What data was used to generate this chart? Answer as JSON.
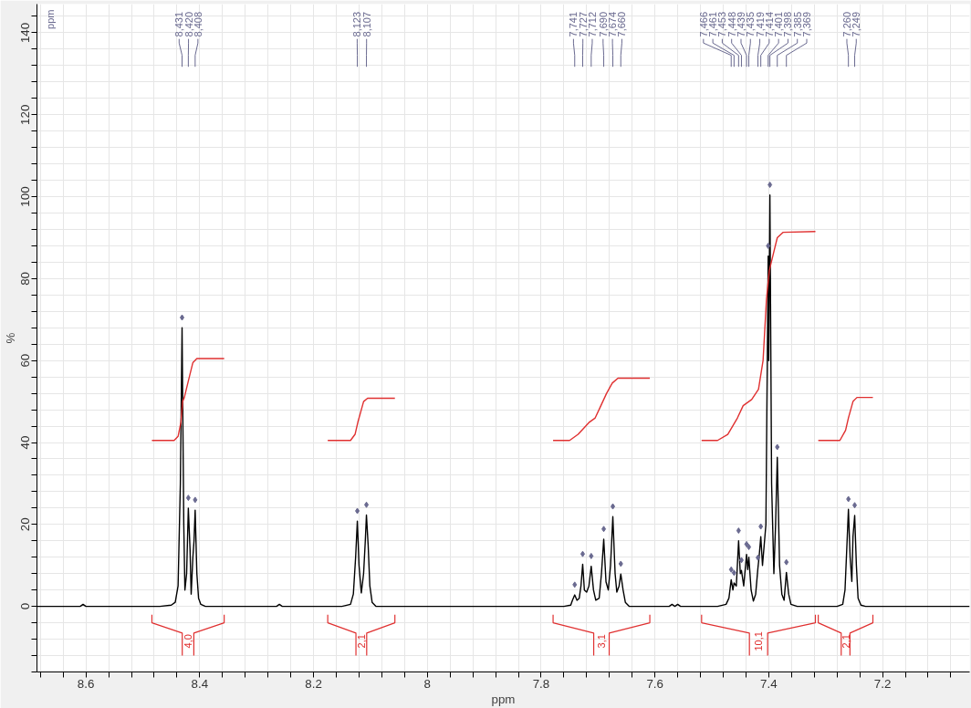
{
  "chart_data": {
    "type": "line",
    "xlabel": "ppm",
    "ylabel": "%",
    "xlim": [
      8.686,
      7.047
    ],
    "ylim": [
      -16,
      147
    ],
    "xticks": [
      {
        "value": 8.68,
        "label": null
      },
      {
        "value": 8.64,
        "label": null
      },
      8.6,
      {
        "value": 8.56,
        "label": null
      },
      {
        "value": 8.52,
        "label": null
      },
      {
        "value": 8.48,
        "label": null
      },
      {
        "value": 8.44,
        "label": null
      },
      8.4,
      {
        "value": 8.36,
        "label": null
      },
      {
        "value": 8.32,
        "label": null
      },
      {
        "value": 8.28,
        "label": null
      },
      {
        "value": 8.24,
        "label": null
      },
      8.2,
      {
        "value": 8.16,
        "label": null
      },
      {
        "value": 8.12,
        "label": null
      },
      {
        "value": 8.08,
        "label": null
      },
      {
        "value": 8.04,
        "label": null
      },
      8,
      {
        "value": 7.96,
        "label": null
      },
      {
        "value": 7.92,
        "label": null
      },
      {
        "value": 7.88,
        "label": null
      },
      {
        "value": 7.84,
        "label": null
      },
      7.8,
      {
        "value": 7.76,
        "label": null
      },
      {
        "value": 7.72,
        "label": null
      },
      {
        "value": 7.68,
        "label": null
      },
      {
        "value": 7.64,
        "label": null
      },
      7.6,
      {
        "value": 7.56,
        "label": null
      },
      {
        "value": 7.52,
        "label": null
      },
      {
        "value": 7.48,
        "label": null
      },
      {
        "value": 7.44,
        "label": null
      },
      7.4,
      {
        "value": 7.36,
        "label": null
      },
      {
        "value": 7.32,
        "label": null
      },
      {
        "value": 7.28,
        "label": null
      },
      {
        "value": 7.24,
        "label": null
      },
      7.2,
      {
        "value": 7.16,
        "label": null
      },
      {
        "value": 7.12,
        "label": null
      },
      {
        "value": 7.08,
        "label": null
      }
    ],
    "yticks": [
      {
        "value": -16,
        "label": null
      },
      {
        "value": -12,
        "label": null
      },
      {
        "value": -8,
        "label": null
      },
      {
        "value": -4,
        "label": null
      },
      0,
      {
        "value": 4,
        "label": null
      },
      {
        "value": 8,
        "label": null
      },
      {
        "value": 12,
        "label": null
      },
      {
        "value": 16,
        "label": null
      },
      20,
      {
        "value": 24,
        "label": null
      },
      {
        "value": 28,
        "label": null
      },
      {
        "value": 32,
        "label": null
      },
      {
        "value": 36,
        "label": null
      },
      40,
      {
        "value": 44,
        "label": null
      },
      {
        "value": 48,
        "label": null
      },
      {
        "value": 52,
        "label": null
      },
      {
        "value": 56,
        "label": null
      },
      60,
      {
        "value": 64,
        "label": null
      },
      {
        "value": 68,
        "label": null
      },
      {
        "value": 72,
        "label": null
      },
      {
        "value": 76,
        "label": null
      },
      80,
      {
        "value": 84,
        "label": null
      },
      {
        "value": 88,
        "label": null
      },
      {
        "value": 92,
        "label": null
      },
      {
        "value": 96,
        "label": null
      },
      100,
      {
        "value": 104,
        "label": null
      },
      {
        "value": 108,
        "label": null
      },
      {
        "value": 112,
        "label": null
      },
      {
        "value": 116,
        "label": null
      },
      120,
      {
        "value": 124,
        "label": null
      },
      {
        "value": 128,
        "label": null
      },
      {
        "value": 132,
        "label": null
      },
      {
        "value": 136,
        "label": null
      },
      140,
      {
        "value": 144,
        "label": null
      }
    ],
    "grid": true,
    "series": [
      {
        "color": "#000000",
        "x": [
          8.686,
          8.61,
          8.605,
          8.6,
          8.47,
          8.45,
          8.443,
          8.438,
          8.434,
          8.431,
          8.428,
          8.426,
          8.423,
          8.42,
          8.417,
          8.415,
          8.412,
          8.41,
          8.408,
          8.405,
          8.402,
          8.398,
          8.39,
          8.265,
          8.26,
          8.255,
          8.15,
          8.135,
          8.13,
          8.126,
          8.123,
          8.12,
          8.116,
          8.112,
          8.109,
          8.107,
          8.104,
          8.101,
          8.097,
          8.09,
          7.76,
          7.748,
          7.745,
          7.741,
          7.737,
          7.733,
          7.73,
          7.727,
          7.724,
          7.72,
          7.716,
          7.712,
          7.708,
          7.704,
          7.698,
          7.694,
          7.69,
          7.686,
          7.682,
          7.678,
          7.674,
          7.67,
          7.667,
          7.663,
          7.66,
          7.656,
          7.652,
          7.645,
          7.575,
          7.57,
          7.565,
          7.56,
          7.555,
          7.55,
          7.49,
          7.475,
          7.47,
          7.466,
          7.463,
          7.461,
          7.457,
          7.453,
          7.45,
          7.448,
          7.444,
          7.439,
          7.437,
          7.435,
          7.431,
          7.427,
          7.423,
          7.419,
          7.417,
          7.414,
          7.411,
          7.405,
          7.401,
          7.4,
          7.398,
          7.395,
          7.391,
          7.388,
          7.385,
          7.381,
          7.377,
          7.373,
          7.369,
          7.365,
          7.361,
          7.35,
          7.28,
          7.27,
          7.266,
          7.262,
          7.26,
          7.257,
          7.254,
          7.252,
          7.249,
          7.246,
          7.243,
          7.238,
          7.23,
          7.047
        ],
        "values": [
          0,
          0,
          0.5,
          0,
          0,
          0.3,
          1,
          5,
          30,
          68,
          20,
          4,
          8,
          24,
          14,
          3,
          12,
          16,
          23.5,
          8,
          2,
          0.5,
          0,
          0,
          0.5,
          0,
          0,
          0.5,
          3,
          12,
          20.8,
          10,
          3.3,
          8,
          16,
          22.3,
          15,
          5,
          1,
          0,
          0,
          0.3,
          1.5,
          2.8,
          1.5,
          2,
          5,
          10.3,
          4,
          3.5,
          5,
          9.8,
          4,
          1.5,
          2,
          8,
          16.4,
          6,
          4,
          10,
          21.9,
          8,
          3.5,
          5,
          7.9,
          4,
          1,
          0,
          0,
          0.5,
          0,
          0.5,
          0,
          0,
          0,
          0.5,
          2,
          6.5,
          4,
          5.7,
          5,
          16,
          8,
          8.8,
          5,
          12.7,
          9,
          12,
          4,
          1.3,
          3,
          9.4,
          12,
          17,
          10,
          20,
          85.5,
          60,
          100.4,
          30,
          8,
          20,
          36.4,
          10,
          3,
          1.5,
          8.3,
          3,
          0.5,
          0,
          0,
          0.5,
          4,
          17,
          23.7,
          12,
          6.1,
          17,
          22.2,
          10,
          2,
          0.3,
          0,
          0
        ]
      },
      {
        "type": "scatter",
        "marker": "diamond",
        "color": "#6a6a90",
        "x": [
          8.431,
          8.42,
          8.408,
          8.123,
          8.107,
          7.741,
          7.727,
          7.712,
          7.69,
          7.674,
          7.66,
          7.466,
          7.461,
          7.453,
          7.448,
          7.439,
          7.435,
          7.419,
          7.414,
          7.401,
          7.398,
          7.385,
          7.369,
          7.26,
          7.249
        ],
        "values": [
          70.5,
          26.5,
          26,
          23.3,
          24.8,
          5.3,
          12.8,
          12.3,
          18.9,
          24.4,
          10.4,
          9,
          8.2,
          18.5,
          11.3,
          15.2,
          14.5,
          11.9,
          19.5,
          88,
          102.9,
          38.9,
          10.8,
          26.2,
          24.7
        ]
      },
      {
        "type": "line",
        "color": "#e03030",
        "x": [
          8.484,
          8.445,
          8.438,
          8.433,
          8.43,
          8.427,
          8.42,
          8.412,
          8.405,
          8.357
        ],
        "values": [
          40.5,
          40.5,
          41.5,
          45,
          50,
          51,
          55,
          59.5,
          60.5,
          60.5
        ]
      },
      {
        "type": "line",
        "color": "#e03030",
        "x": [
          8.175,
          8.135,
          8.127,
          8.122,
          8.118,
          8.112,
          8.105,
          8.057
        ],
        "values": [
          40.5,
          40.5,
          42,
          45,
          47,
          50,
          50.8,
          50.8
        ]
      },
      {
        "type": "line",
        "color": "#e03030",
        "x": [
          7.779,
          7.75,
          7.735,
          7.725,
          7.715,
          7.705,
          7.695,
          7.685,
          7.675,
          7.665,
          7.609
        ],
        "values": [
          40.5,
          40.5,
          42,
          43.5,
          45,
          46,
          49,
          52,
          54.5,
          55.7,
          55.7
        ]
      },
      {
        "type": "line",
        "color": "#e03030",
        "x": [
          7.518,
          7.49,
          7.472,
          7.455,
          7.445,
          7.43,
          7.418,
          7.41,
          7.404,
          7.399,
          7.392,
          7.385,
          7.375,
          7.318
        ],
        "values": [
          40.5,
          40.5,
          42,
          46,
          49,
          50.5,
          53,
          60,
          75,
          82,
          86,
          90,
          91.3,
          91.5
        ]
      },
      {
        "type": "line",
        "color": "#e03030",
        "x": [
          7.313,
          7.275,
          7.265,
          7.26,
          7.252,
          7.245,
          7.217
        ],
        "values": [
          40.5,
          40.5,
          43,
          46,
          50,
          51,
          51
        ]
      }
    ],
    "annotations": [
      "ppm",
      "8,431",
      "8,420",
      "8,408",
      "8,123",
      "8,107",
      "7,741",
      "7,727",
      "7,712",
      "7,690",
      "7,674",
      "7,660",
      "7,466",
      "7,461",
      "7,453",
      "7,448",
      "7,439",
      "7,435",
      "7,419",
      "7,414",
      "7,401",
      "7,398",
      "7,385",
      "7,369",
      "7,260",
      "7,249",
      "4,0",
      "2,1",
      "3,1",
      "10,1",
      "2,1"
    ]
  }
}
